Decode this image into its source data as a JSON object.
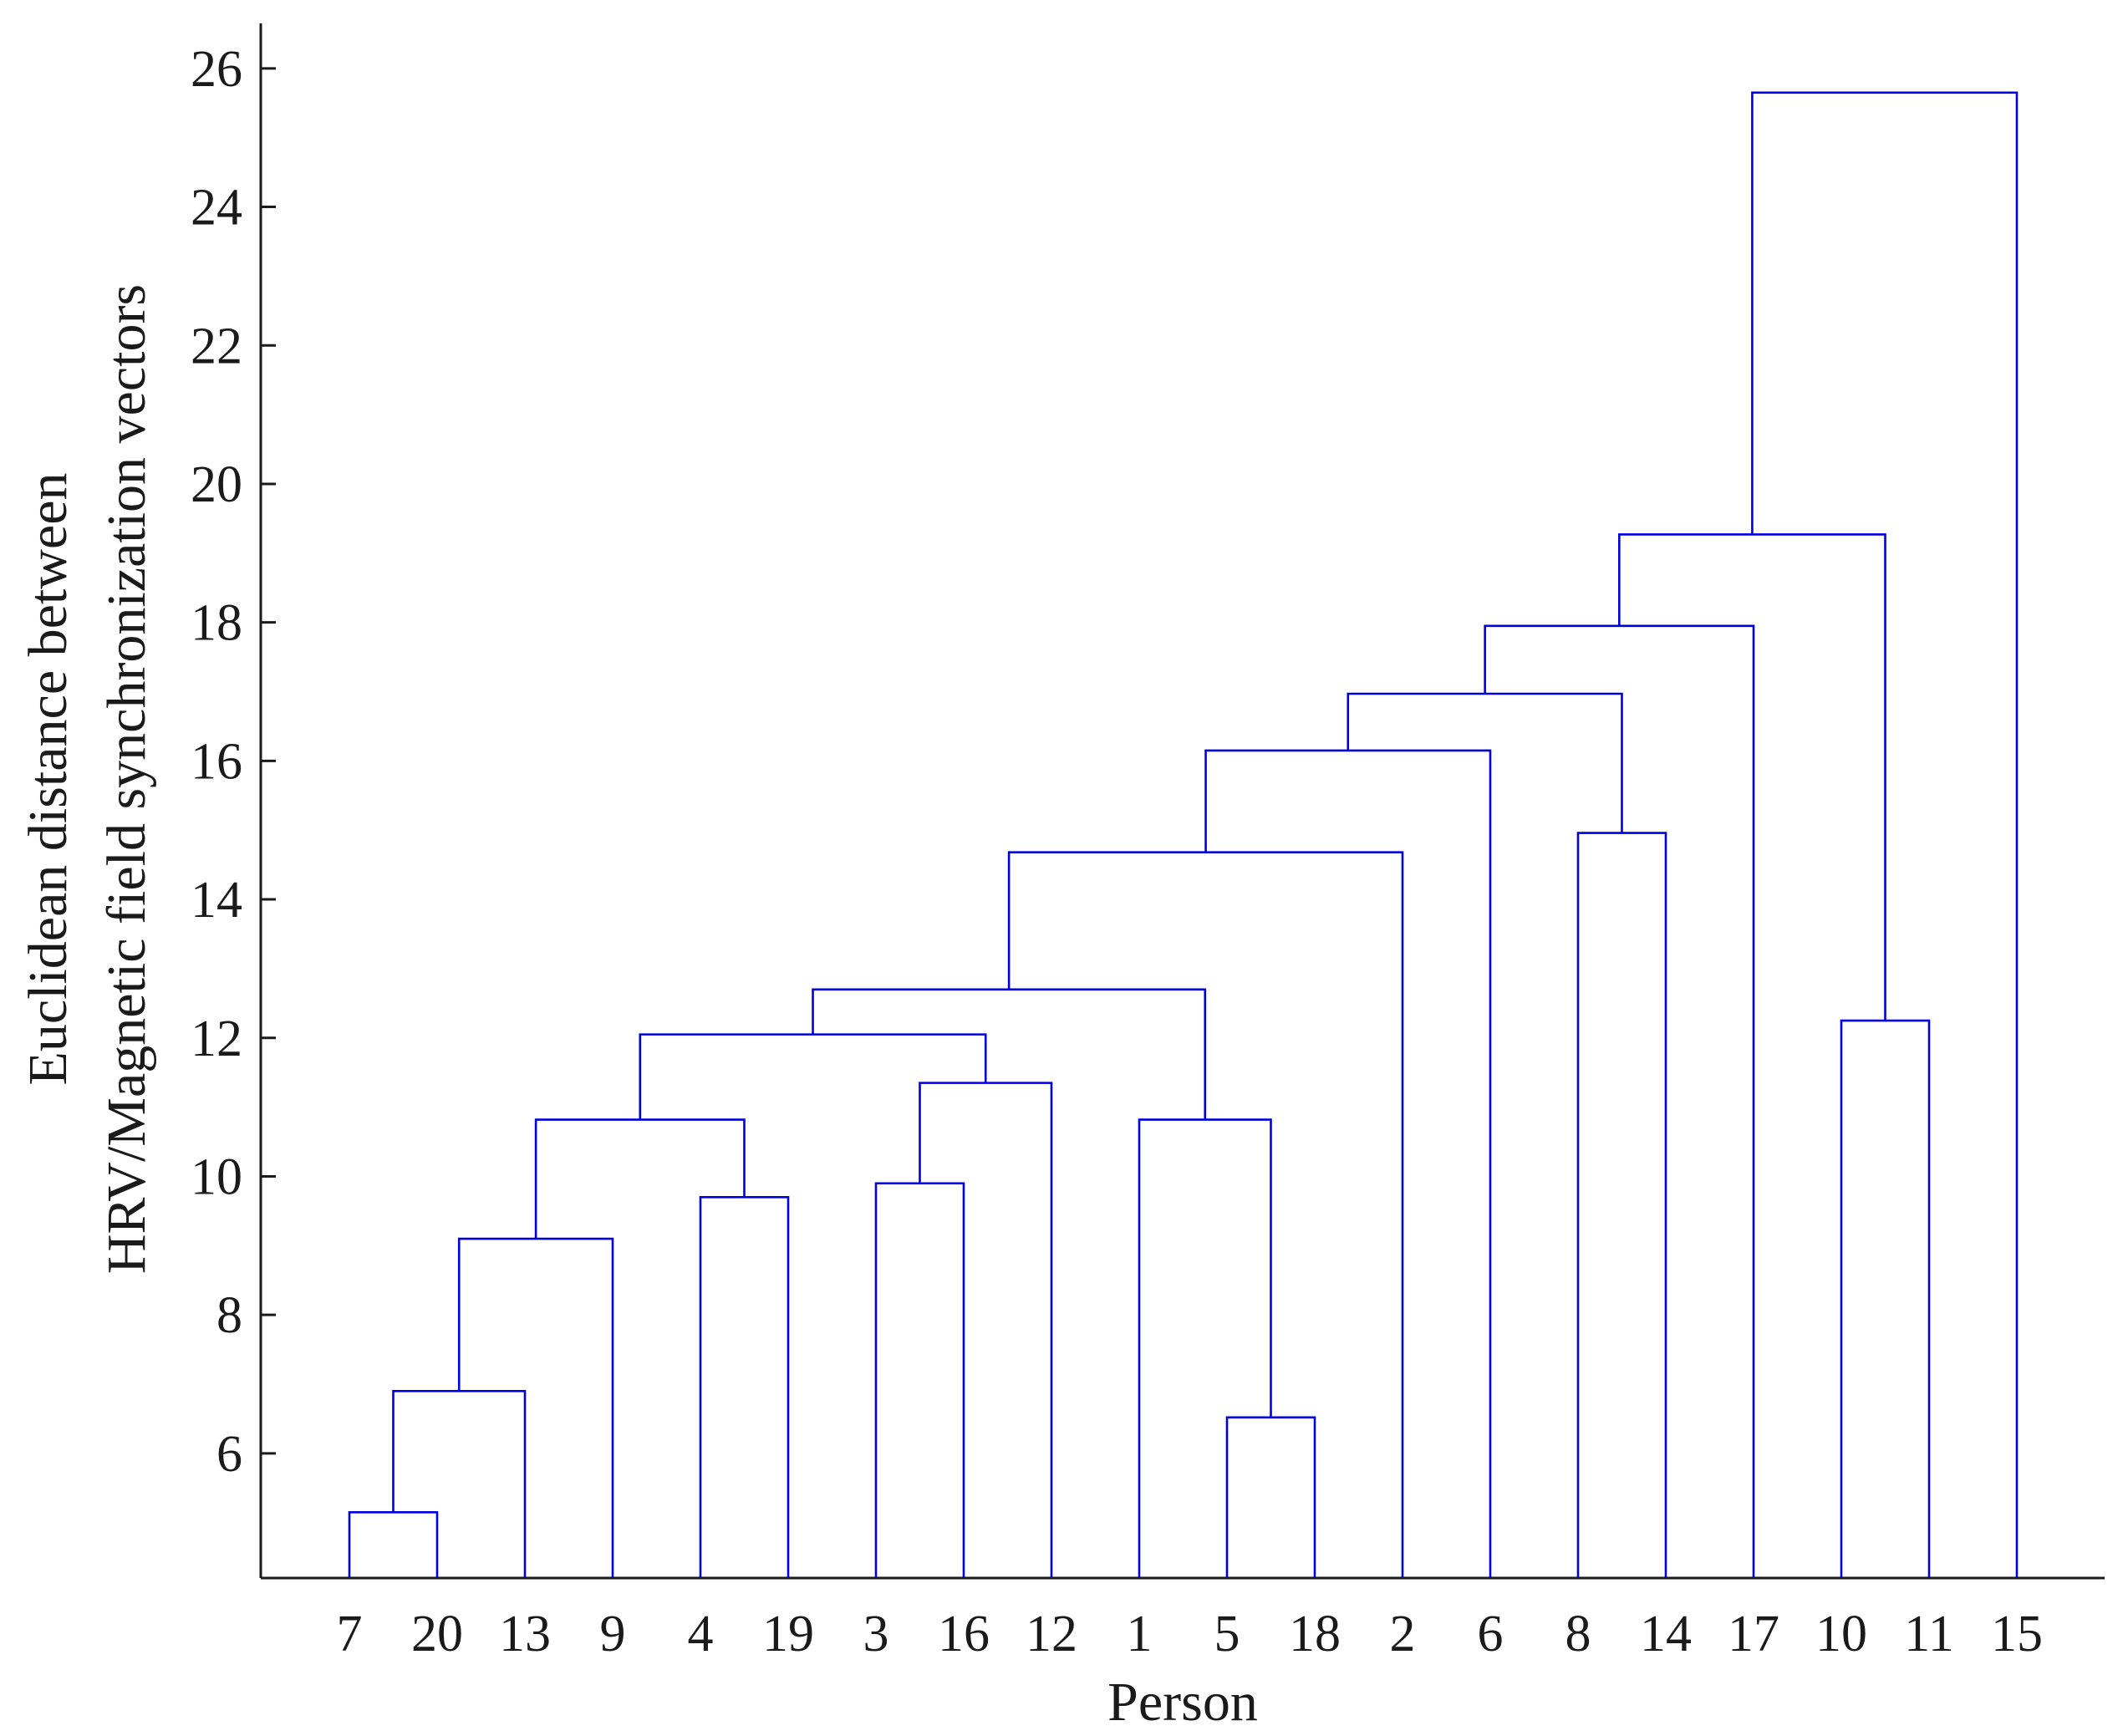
{
  "chart_data": {
    "type": "dendrogram",
    "xlabel": "Person",
    "ylabel_lines": [
      "Euclidean distance between",
      "HRV/Magnetic field synchronization vectors"
    ],
    "leaf_order": [
      "7",
      "20",
      "13",
      "9",
      "4",
      "19",
      "3",
      "16",
      "12",
      "1",
      "5",
      "18",
      "2",
      "6",
      "8",
      "14",
      "17",
      "10",
      "11",
      "15"
    ],
    "y_ticks": [
      6,
      8,
      10,
      12,
      14,
      16,
      18,
      20,
      22,
      24,
      26
    ],
    "ylim": [
      4.2,
      26.65
    ],
    "line_color": "#0000dd",
    "merges": [
      {
        "left": "7",
        "right": "20",
        "height": 5.15
      },
      {
        "left": "7,20",
        "right": "13",
        "height": 6.9
      },
      {
        "left": "7,20,13",
        "right": "9",
        "height": 9.1
      },
      {
        "left": "4",
        "right": "19",
        "height": 9.7
      },
      {
        "left": "7,20,13,9",
        "right": "4,19",
        "height": 10.82
      },
      {
        "left": "3",
        "right": "16",
        "height": 9.9
      },
      {
        "left": "3,16",
        "right": "12",
        "height": 11.35
      },
      {
        "left": "7,20,13,9,4,19",
        "right": "3,16,12",
        "height": 12.05
      },
      {
        "left": "5",
        "right": "18",
        "height": 6.52
      },
      {
        "left": "1",
        "right": "5,18",
        "height": 10.82
      },
      {
        "left": "7,20,13,9,4,19,3,16,12",
        "right": "1,5,18",
        "height": 12.7
      },
      {
        "left": "7,20,13,9,4,19,3,16,12,1,5,18",
        "right": "2",
        "height": 14.68
      },
      {
        "left": "7,20,13,9,4,19,3,16,12,1,5,18,2",
        "right": "6",
        "height": 16.15
      },
      {
        "left": "8",
        "right": "14",
        "height": 14.96
      },
      {
        "left": "7,20,13,9,4,19,3,16,12,1,5,18,2,6",
        "right": "8,14",
        "height": 16.97
      },
      {
        "left": "7,20,13,9,4,19,3,16,12,1,5,18,2,6,8,14",
        "right": "17",
        "height": 17.95
      },
      {
        "left": "10",
        "right": "11",
        "height": 12.25
      },
      {
        "left": "7,20,13,9,4,19,3,16,12,1,5,18,2,6,8,14,17",
        "right": "10,11",
        "height": 19.27
      },
      {
        "left": "7,20,13,9,4,19,3,16,12,1,5,18,2,6,8,14,17,10,11",
        "right": "15",
        "height": 25.65
      }
    ]
  }
}
